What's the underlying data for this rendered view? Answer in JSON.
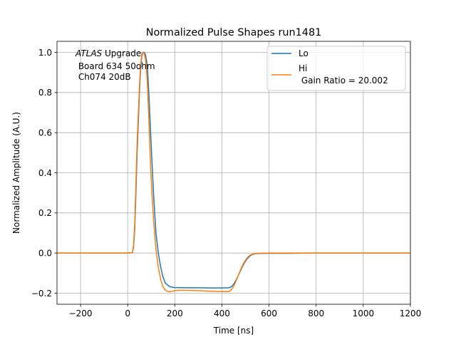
{
  "chart_data": {
    "type": "line",
    "title": "Normalized Pulse Shapes run1481",
    "xlabel": "Time [ns]",
    "ylabel": "Normalized Amplitude (A.U.)",
    "xlim": [
      -300,
      1200
    ],
    "ylim": [
      -0.255,
      1.055
    ],
    "xticks": [
      -200,
      0,
      200,
      400,
      600,
      800,
      1000,
      1200
    ],
    "xtick_labels": [
      "−200",
      "0",
      "200",
      "400",
      "600",
      "800",
      "1000",
      "1200"
    ],
    "yticks": [
      -0.2,
      0.0,
      0.2,
      0.4,
      0.6,
      0.8,
      1.0
    ],
    "ytick_labels": [
      "−0.2",
      "0.0",
      "0.2",
      "0.4",
      "0.6",
      "0.8",
      "1.0"
    ],
    "grid": true,
    "legend_position": "top-right",
    "annotation": {
      "experiment": "ATLAS",
      "line1_rest": " Upgrade",
      "line2": " Board 634 50ohm",
      "line3": " Ch074 20dB"
    },
    "legend": [
      {
        "label_lines": [
          "Lo"
        ],
        "color": "#1f77b4"
      },
      {
        "label_lines": [
          "Hi",
          " Gain Ratio = 20.002"
        ],
        "color": "#ff7f0e"
      }
    ],
    "series": [
      {
        "name": "Lo",
        "color": "#1f77b4",
        "x": [
          -300,
          -200,
          -100,
          0,
          20,
          25,
          30,
          35,
          40,
          50,
          55,
          60,
          65,
          70,
          75,
          80,
          85,
          90,
          100,
          110,
          120,
          130,
          140,
          150,
          160,
          170,
          180,
          200,
          250,
          300,
          350,
          400,
          430,
          440,
          450,
          460,
          470,
          480,
          490,
          500,
          510,
          520,
          530,
          540,
          560,
          600,
          700,
          800,
          900,
          1000,
          1100,
          1200
        ],
        "y": [
          0.0,
          0.0,
          0.0,
          0.0,
          0.002,
          0.03,
          0.12,
          0.3,
          0.5,
          0.8,
          0.92,
          0.98,
          1.0,
          1.0,
          0.99,
          0.96,
          0.9,
          0.79,
          0.53,
          0.29,
          0.1,
          0.0,
          -0.07,
          -0.12,
          -0.15,
          -0.16,
          -0.168,
          -0.172,
          -0.173,
          -0.173,
          -0.174,
          -0.174,
          -0.173,
          -0.168,
          -0.155,
          -0.135,
          -0.11,
          -0.085,
          -0.06,
          -0.04,
          -0.025,
          -0.013,
          -0.007,
          -0.003,
          -0.002,
          -0.001,
          -0.001,
          0.0,
          0.0,
          0.0,
          0.0,
          0.0
        ]
      },
      {
        "name": "Hi",
        "color": "#ff7f0e",
        "x": [
          -300,
          -200,
          -100,
          0,
          20,
          25,
          30,
          35,
          40,
          50,
          55,
          60,
          65,
          70,
          75,
          80,
          85,
          90,
          95,
          100,
          110,
          120,
          130,
          140,
          150,
          160,
          170,
          180,
          190,
          200,
          220,
          250,
          300,
          350,
          400,
          430,
          440,
          450,
          460,
          470,
          480,
          490,
          500,
          510,
          520,
          530,
          540,
          560,
          600,
          700,
          800,
          900,
          1000,
          1100,
          1200
        ],
        "y": [
          0.0,
          0.0,
          0.0,
          0.0,
          0.002,
          0.04,
          0.15,
          0.35,
          0.55,
          0.83,
          0.94,
          0.99,
          1.0,
          0.995,
          0.97,
          0.91,
          0.81,
          0.66,
          0.5,
          0.36,
          0.16,
          0.02,
          -0.07,
          -0.13,
          -0.168,
          -0.185,
          -0.192,
          -0.192,
          -0.19,
          -0.187,
          -0.186,
          -0.186,
          -0.187,
          -0.19,
          -0.192,
          -0.192,
          -0.183,
          -0.165,
          -0.14,
          -0.11,
          -0.08,
          -0.055,
          -0.035,
          -0.02,
          -0.01,
          -0.005,
          -0.002,
          -0.001,
          0.0,
          0.0,
          0.0,
          0.0,
          0.0,
          0.0,
          0.0
        ]
      }
    ]
  }
}
